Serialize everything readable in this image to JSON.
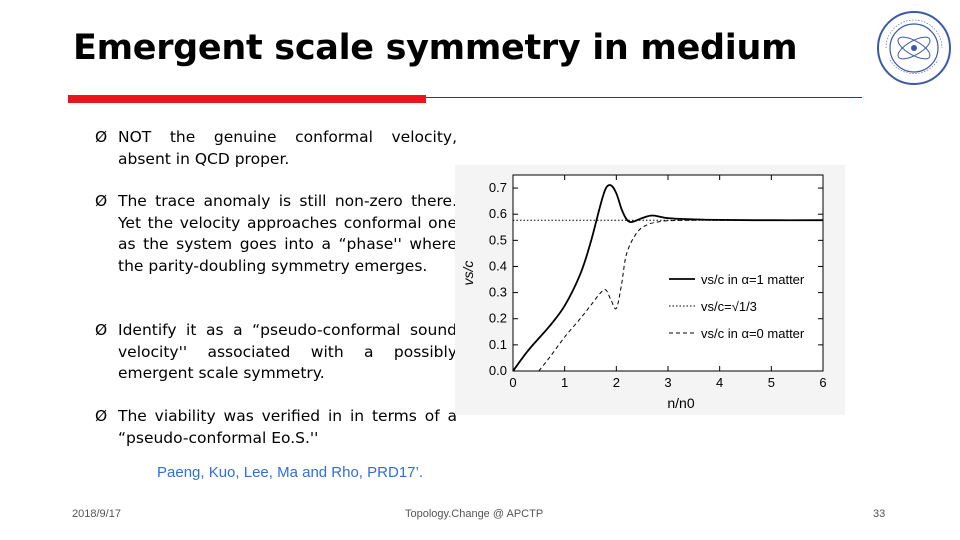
{
  "slide": {
    "title": "Emergent scale symmetry in medium",
    "bullet_marker": "Ø",
    "bullets": [
      "NOT the genuine conformal velocity, absent in QCD proper.",
      "The trace anomaly is still non-zero there. Yet the velocity approaches conformal one as the system goes into a “phase'' where the parity-doubling symmetry emerges.",
      "Identify it as a “pseudo-conformal sound velocity'' associated with a possibly emergent scale symmetry.",
      "The viability was verified in in terms of a “pseudo-conformal Eo.S.''"
    ],
    "citation": "Paeng, Kuo, Lee, Ma and Rho, PRD17’.",
    "footer": {
      "date": "2018/9/17",
      "center": "Topology.Change @ APCTP",
      "page": "33"
    },
    "logo_text": "COLLEGE OF PHYSICS JILIN UNIVERSITY",
    "colors": {
      "title_rule": "#e8161b",
      "citation": "#2f6fd6"
    }
  },
  "chart_data": {
    "type": "line",
    "xlabel": "n/n0",
    "ylabel": "vs/c",
    "xlim": [
      0,
      6
    ],
    "ylim": [
      0,
      0.75
    ],
    "xticks": [
      "0",
      "1",
      "2",
      "3",
      "4",
      "5",
      "6"
    ],
    "yticks": [
      "0.0",
      "0.1",
      "0.2",
      "0.3",
      "0.4",
      "0.5",
      "0.6",
      "0.7"
    ],
    "series": [
      {
        "name": "vs/c in α=1 matter",
        "style": "solid",
        "x": [
          0.0,
          0.3,
          0.7,
          1.0,
          1.3,
          1.5,
          1.7,
          1.8,
          1.9,
          2.0,
          2.1,
          2.2,
          2.3,
          2.5,
          2.7,
          3.0,
          3.5,
          4.0,
          5.0,
          6.0
        ],
        "y": [
          0.0,
          0.08,
          0.17,
          0.25,
          0.37,
          0.49,
          0.64,
          0.7,
          0.71,
          0.68,
          0.62,
          0.58,
          0.57,
          0.585,
          0.595,
          0.585,
          0.58,
          0.578,
          0.577,
          0.577
        ]
      },
      {
        "name": "vs/c=√1/3",
        "style": "dotted",
        "x": [
          0.0,
          6.0
        ],
        "y": [
          0.577,
          0.577
        ]
      },
      {
        "name": "vs/c in α=0 matter",
        "style": "dashed",
        "x": [
          0.5,
          0.7,
          1.0,
          1.3,
          1.5,
          1.7,
          1.8,
          1.9,
          2.0,
          2.1,
          2.2,
          2.4,
          2.6,
          2.8,
          3.0,
          3.5,
          4.0,
          5.0,
          6.0
        ],
        "y": [
          0.0,
          0.05,
          0.13,
          0.2,
          0.25,
          0.3,
          0.31,
          0.27,
          0.24,
          0.33,
          0.45,
          0.53,
          0.56,
          0.57,
          0.575,
          0.577,
          0.577,
          0.577,
          0.577
        ]
      }
    ],
    "legend": {
      "placement": "right",
      "entries": [
        "vs/c in α=1 matter",
        "vs/c=√1/3",
        "vs/c in α=0 matter"
      ]
    }
  }
}
